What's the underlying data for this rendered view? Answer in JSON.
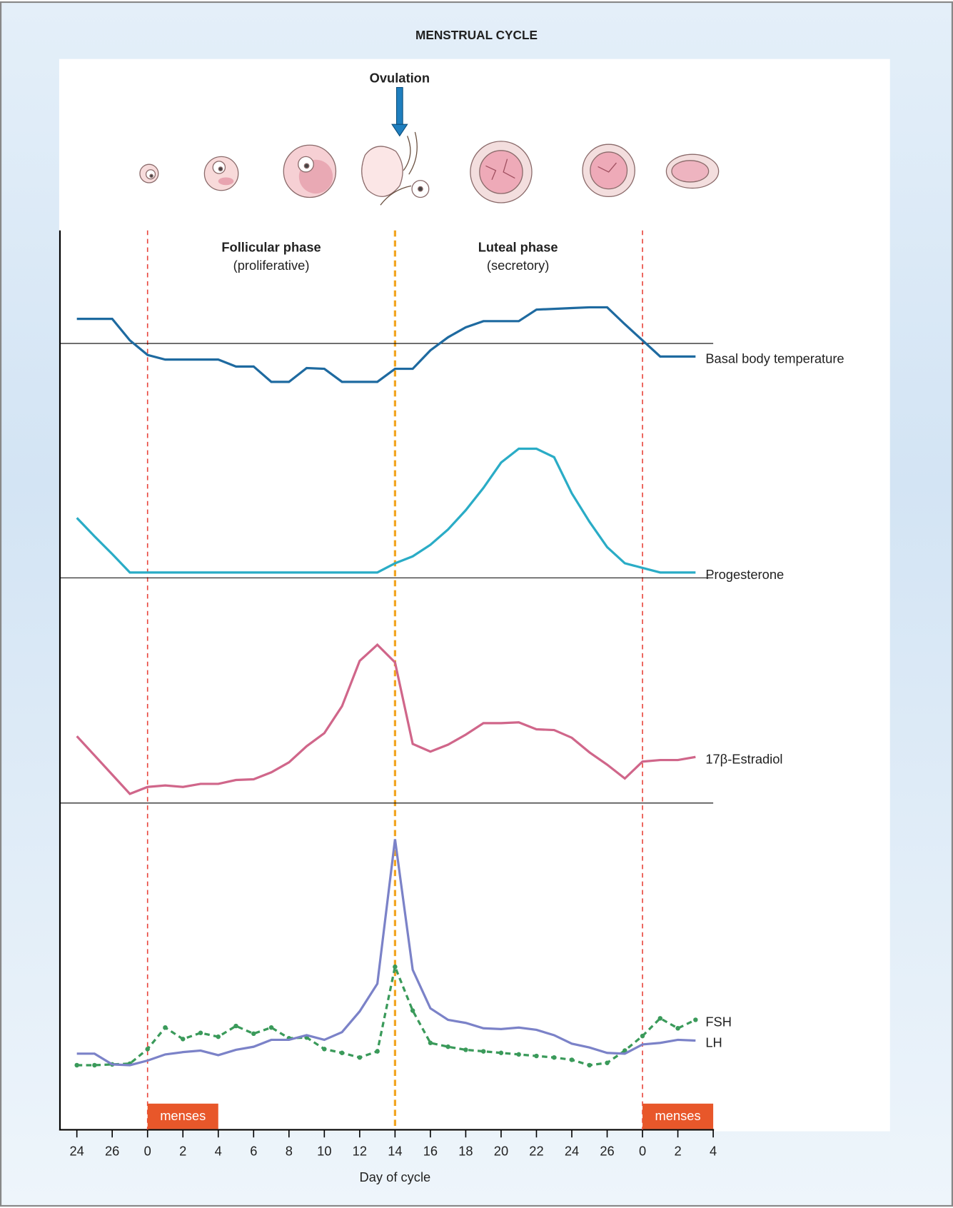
{
  "title": "MENSTRUAL CYCLE",
  "ovulation": "Ovulation",
  "phases": [
    {
      "name": "Follicular phase",
      "note": "(proliferative)"
    },
    {
      "name": "Luteal phase",
      "note": "(secretory)"
    }
  ],
  "phase_lines": [
    {
      "x": 0,
      "color": "#e8453c"
    },
    {
      "x": 14,
      "color": "#f2a623"
    },
    {
      "x": 28,
      "color": "#e8453c"
    }
  ],
  "menses": [
    {
      "label": "menses",
      "start": 0,
      "end": 4
    },
    {
      "label": "menses",
      "start": 28,
      "end": 32
    }
  ],
  "chart_data": [
    {
      "type": "line",
      "xlim": [
        -5,
        32
      ],
      "ylim": [
        -6,
        6
      ],
      "x": [
        -4,
        -3,
        -2,
        -1,
        0,
        1,
        2,
        3,
        4,
        5,
        6,
        7,
        8,
        9,
        10,
        11,
        12,
        13,
        14,
        15,
        16,
        17,
        18,
        19,
        20,
        21,
        22,
        23,
        24,
        25,
        26,
        27,
        28,
        29,
        30,
        31
      ],
      "series": [
        {
          "name": "Basal body temperature",
          "color": "#1e6aa0",
          "values": [
            3.2,
            3.2,
            3.2,
            0.4,
            -1.5,
            -2.1,
            -2.1,
            -2.1,
            -2.1,
            -3,
            -3,
            -5,
            -5,
            -3.2,
            -3.3,
            -5,
            -5,
            -5,
            -3.3,
            -3.3,
            -0.9,
            0.8,
            2.1,
            2.9,
            2.9,
            2.9,
            4.4,
            4.5,
            4.6,
            4.7,
            4.7,
            2.5,
            0.4,
            -1.7,
            -1.7,
            -1.7
          ]
        }
      ]
    },
    {
      "type": "line",
      "xlim": [
        -5,
        32
      ],
      "ylim": [
        0,
        20
      ],
      "x": [
        -4,
        -3,
        -2,
        -1,
        0,
        1,
        2,
        3,
        4,
        5,
        6,
        7,
        8,
        9,
        10,
        11,
        12,
        13,
        14,
        15,
        16,
        17,
        18,
        19,
        20,
        21,
        22,
        23,
        24,
        25,
        26,
        27,
        28,
        29,
        30,
        31
      ],
      "series": [
        {
          "name": "Progesterone",
          "color": "#2aacc6",
          "values": [
            7.8,
            5.4,
            3.1,
            0.7,
            0.7,
            0.7,
            0.7,
            0.7,
            0.7,
            0.7,
            0.7,
            0.7,
            0.7,
            0.7,
            0.7,
            0.7,
            0.7,
            0.7,
            1.9,
            2.8,
            4.3,
            6.3,
            8.8,
            11.7,
            15,
            16.8,
            16.8,
            15.7,
            11,
            7.3,
            4,
            1.9,
            1.3,
            0.7,
            0.7,
            0.7
          ]
        }
      ]
    },
    {
      "type": "line",
      "xlim": [
        -5,
        32
      ],
      "ylim": [
        0,
        22
      ],
      "x": [
        -4,
        -3,
        -2,
        -1,
        0,
        1,
        2,
        3,
        4,
        5,
        6,
        7,
        8,
        9,
        10,
        11,
        12,
        13,
        14,
        15,
        16,
        17,
        18,
        19,
        20,
        21,
        22,
        23,
        24,
        25,
        26,
        27,
        28,
        29,
        30,
        31
      ],
      "series": [
        {
          "name": "17β-Estradiol",
          "color": "#d0668a",
          "values": [
            8.7,
            6.2,
            3.7,
            1.2,
            2.1,
            2.3,
            2.1,
            2.5,
            2.5,
            3,
            3.1,
            4,
            5.3,
            7.4,
            9.1,
            12.6,
            18.5,
            20.6,
            18.3,
            7.7,
            6.7,
            7.6,
            8.9,
            10.4,
            10.4,
            10.5,
            9.6,
            9.5,
            8.5,
            6.6,
            5,
            3.2,
            5.4,
            5.6,
            5.6,
            6
          ]
        }
      ]
    },
    {
      "type": "line",
      "xlim": [
        -5,
        32
      ],
      "ylim": [
        0,
        40
      ],
      "xlabel": "Day of cycle",
      "xticks": [
        {
          "value": -4,
          "label": "24"
        },
        {
          "value": -2,
          "label": "26"
        },
        0,
        2,
        4,
        6,
        8,
        10,
        12,
        14,
        16,
        18,
        20,
        22,
        24,
        26,
        {
          "value": 28,
          "label": "0"
        },
        {
          "value": 30,
          "label": "2"
        },
        {
          "value": 32,
          "label": "4"
        }
      ],
      "x": [
        -4,
        -3,
        -2,
        -1,
        0,
        1,
        2,
        3,
        4,
        5,
        6,
        7,
        8,
        9,
        10,
        11,
        12,
        13,
        14,
        15,
        16,
        17,
        18,
        19,
        20,
        21,
        22,
        23,
        24,
        25,
        26,
        27,
        28,
        29,
        30,
        31
      ],
      "series": [
        {
          "name": "FSH",
          "color": "#3a9a5a",
          "dashed": true,
          "values": [
            7.6,
            7.6,
            7.7,
            7.8,
            9.7,
            12.5,
            11,
            11.8,
            11.3,
            12.7,
            11.7,
            12.5,
            11.1,
            11.2,
            9.7,
            9.2,
            8.6,
            9.4,
            20.4,
            14.7,
            10.5,
            10,
            9.6,
            9.4,
            9.2,
            9,
            8.8,
            8.6,
            8.3,
            7.6,
            7.9,
            9.5,
            11.4,
            13.7,
            12.4,
            13.5
          ]
        },
        {
          "name": "LH",
          "color": "#7b82c8",
          "values": [
            9.1,
            9.1,
            7.7,
            7.6,
            8.2,
            9,
            9.3,
            9.5,
            8.9,
            9.6,
            10,
            10.9,
            10.9,
            11.5,
            10.9,
            11.9,
            14.6,
            18.2,
            37,
            20,
            15,
            13.5,
            13.1,
            12.4,
            12.3,
            12.5,
            12.2,
            11.5,
            10.4,
            9.9,
            9.2,
            9.1,
            10.3,
            10.5,
            10.9,
            10.8
          ]
        }
      ]
    }
  ]
}
